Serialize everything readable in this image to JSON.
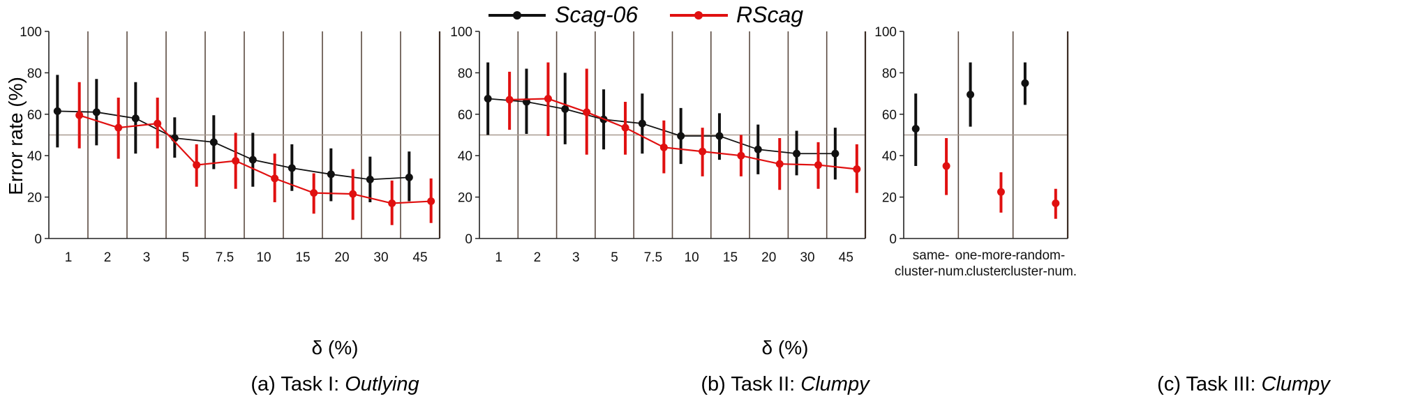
{
  "legend": [
    {
      "name": "Scag-06",
      "color": "#111111"
    },
    {
      "name": "RScag",
      "color": "#e01010"
    }
  ],
  "colors": {
    "reference_line": "#a89a90",
    "divider": "#5a4a40"
  },
  "chart_data": [
    {
      "type": "line",
      "caption_prefix": "(a) Task I: ",
      "caption_italic": "Outlying",
      "xlabel": "δ (%)",
      "ylabel": "Error rate (%)",
      "ylim": [
        0,
        100
      ],
      "yticks": [
        0,
        20,
        40,
        60,
        80,
        100
      ],
      "reference_y": 50,
      "categories": [
        "1",
        "2",
        "3",
        "5",
        "7.5",
        "10",
        "15",
        "20",
        "30",
        "45"
      ],
      "series": [
        {
          "name": "Scag-06",
          "values": [
            61.5,
            61,
            58,
            48.5,
            46.5,
            38,
            34,
            31,
            28.5,
            29.5
          ],
          "lower": [
            44,
            45,
            41,
            39,
            33.5,
            25,
            23,
            18,
            17.5,
            18
          ],
          "upper": [
            79,
            77,
            75.5,
            58.5,
            59.5,
            51,
            45.5,
            43.5,
            39.5,
            42
          ]
        },
        {
          "name": "RScag",
          "values": [
            59.5,
            53.5,
            55.5,
            35.5,
            37.5,
            29,
            22,
            21.5,
            17,
            18
          ],
          "lower": [
            43.5,
            38.5,
            43.5,
            25,
            24,
            17.5,
            12,
            9,
            6.5,
            7.5
          ],
          "upper": [
            75.5,
            68,
            68,
            45.5,
            51,
            41,
            31.5,
            33.5,
            28,
            29
          ]
        }
      ]
    },
    {
      "type": "line",
      "caption_prefix": "(b) Task II: ",
      "caption_italic": "Clumpy",
      "xlabel": "δ (%)",
      "ylabel": "",
      "ylim": [
        0,
        100
      ],
      "yticks": [
        0,
        20,
        40,
        60,
        80,
        100
      ],
      "reference_y": 50,
      "categories": [
        "1",
        "2",
        "3",
        "5",
        "7.5",
        "10",
        "15",
        "20",
        "30",
        "45"
      ],
      "series": [
        {
          "name": "Scag-06",
          "values": [
            67.5,
            66,
            62.5,
            57.5,
            55.5,
            49.5,
            49.5,
            43,
            41,
            41
          ],
          "lower": [
            50,
            50.5,
            45.5,
            43,
            41,
            36,
            38,
            31,
            30.5,
            28.5
          ],
          "upper": [
            85,
            82,
            80,
            72,
            70,
            63,
            60.5,
            55,
            52,
            53.5
          ]
        },
        {
          "name": "RScag",
          "values": [
            67,
            67.5,
            61,
            53.5,
            44,
            42,
            40,
            36,
            35.5,
            33.5
          ],
          "lower": [
            52.5,
            49.5,
            40.5,
            40.5,
            31.5,
            30,
            30,
            23.5,
            24,
            22
          ],
          "upper": [
            80.5,
            85,
            82,
            66,
            57,
            53.5,
            50,
            48.5,
            46.5,
            45.5
          ]
        }
      ]
    },
    {
      "type": "scatter",
      "caption_prefix": "(c) Task III: ",
      "caption_italic": "Clumpy",
      "xlabel": "",
      "ylabel": "",
      "ylim": [
        0,
        100
      ],
      "yticks": [
        0,
        20,
        40,
        60,
        80,
        100
      ],
      "reference_y": 50,
      "categories": [
        [
          "same-",
          "cluster-num."
        ],
        [
          "one-more-",
          "cluster"
        ],
        [
          "random-",
          "cluster-num."
        ]
      ],
      "series": [
        {
          "name": "Scag-06",
          "values": [
            53,
            69.5,
            75
          ],
          "lower": [
            35,
            54,
            64.5
          ],
          "upper": [
            70,
            85,
            85
          ]
        },
        {
          "name": "RScag",
          "values": [
            35,
            22.5,
            17
          ],
          "lower": [
            21,
            12.5,
            9.5
          ],
          "upper": [
            48.5,
            32,
            24
          ]
        }
      ]
    }
  ]
}
